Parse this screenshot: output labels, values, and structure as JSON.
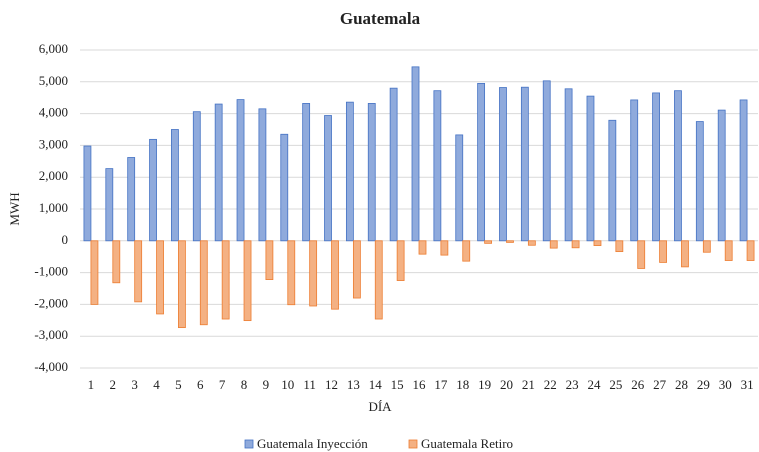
{
  "chart_data": {
    "type": "bar",
    "title": "Guatemala",
    "x_label": "DÍA",
    "y_label": "MWH",
    "categories": [
      "1",
      "2",
      "3",
      "4",
      "5",
      "6",
      "7",
      "8",
      "9",
      "10",
      "11",
      "12",
      "13",
      "14",
      "15",
      "16",
      "17",
      "18",
      "19",
      "20",
      "21",
      "22",
      "23",
      "24",
      "25",
      "26",
      "27",
      "28",
      "29",
      "30",
      "31"
    ],
    "series": [
      {
        "name": "Guatemala Inyección",
        "color": "#8faadc",
        "stroke": "#4472c4",
        "values": [
          2980,
          2270,
          2620,
          3190,
          3500,
          4060,
          4300,
          4440,
          4150,
          3350,
          4320,
          3940,
          4360,
          4320,
          4800,
          5470,
          4720,
          3330,
          4950,
          4820,
          4830,
          5030,
          4780,
          4550,
          3790,
          4430,
          4650,
          4720,
          3750,
          4110,
          4430
        ]
      },
      {
        "name": "Guatemala Retiro",
        "color": "#f4b183",
        "stroke": "#ed7d31",
        "values": [
          -2000,
          -1320,
          -1920,
          -2300,
          -2730,
          -2640,
          -2460,
          -2510,
          -1220,
          -2010,
          -2050,
          -2150,
          -1800,
          -2460,
          -1250,
          -420,
          -450,
          -640,
          -80,
          -50,
          -140,
          -230,
          -220,
          -150,
          -340,
          -870,
          -680,
          -820,
          -360,
          -620,
          -620
        ]
      }
    ],
    "ylim": [
      -4000,
      6000
    ],
    "yticks": [
      {
        "value": -4000,
        "label": "-4,000"
      },
      {
        "value": -3000,
        "label": "-3,000"
      },
      {
        "value": -2000,
        "label": "-2,000"
      },
      {
        "value": -1000,
        "label": "-1,000"
      },
      0,
      {
        "value": 1000,
        "label": "1,000"
      },
      {
        "value": 2000,
        "label": "2,000"
      },
      {
        "value": 3000,
        "label": "3,000"
      },
      {
        "value": 4000,
        "label": "4,000"
      },
      {
        "value": 5000,
        "label": "5,000"
      },
      {
        "value": 6000,
        "label": "6,000"
      }
    ],
    "grid": true,
    "legend": "bottom"
  }
}
